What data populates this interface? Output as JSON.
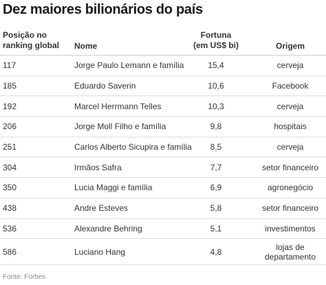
{
  "chart_data": {
    "type": "table",
    "title": "Dez maiores bilionários do país",
    "columns": [
      "Posição no ranking global",
      "Nome",
      "Fortuna (em US$ bi)",
      "Origem"
    ],
    "rows": [
      {
        "rank": "117",
        "name": "Jorge Paulo Lemann e família",
        "worth": "15,4",
        "origin": "cerveja"
      },
      {
        "rank": "185",
        "name": "Eduardo Saverin",
        "worth": "10,6",
        "origin": "Facebook"
      },
      {
        "rank": "192",
        "name": "Marcel Herrmann Telles",
        "worth": "10,3",
        "origin": "cerveja"
      },
      {
        "rank": "206",
        "name": "Jorge Moll Filho e família",
        "worth": "9,8",
        "origin": "hospitais"
      },
      {
        "rank": "251",
        "name": "Carlos Alberto Sicupira e família",
        "worth": "8,5",
        "origin": "cerveja"
      },
      {
        "rank": "304",
        "name": "Irmãos Safra",
        "worth": "7,7",
        "origin": "setor financeiro"
      },
      {
        "rank": "350",
        "name": "Lucia Maggi e família",
        "worth": "6,9",
        "origin": "agronegócio"
      },
      {
        "rank": "438",
        "name": "Andre Esteves",
        "worth": "5,8",
        "origin": "setor financeiro"
      },
      {
        "rank": "536",
        "name": "Alexandre Behring",
        "worth": "5,1",
        "origin": "investimentos"
      },
      {
        "rank": "586",
        "name": "Luciano Hang",
        "worth": "4,8",
        "origin": "lojas de departamento"
      }
    ]
  },
  "header": {
    "rank_line1": "Posição no",
    "rank_line2": "ranking global",
    "name": "Nome",
    "worth_line1": "Fortuna",
    "worth_line2": "(em US$ bi)",
    "origin": "Origem"
  },
  "source": "Fonte: Forbes"
}
